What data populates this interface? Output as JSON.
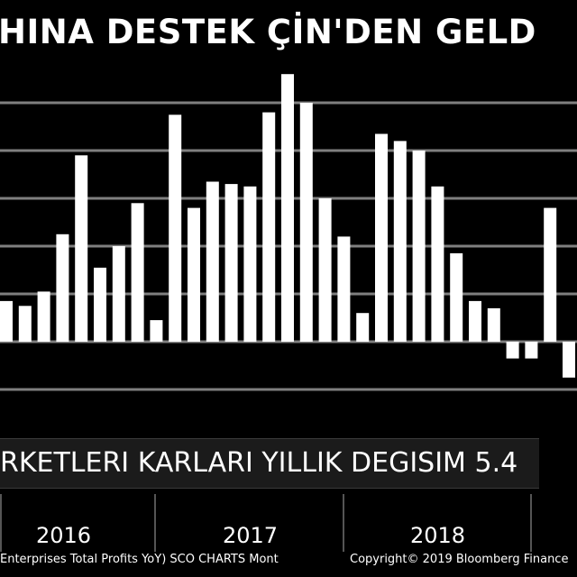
{
  "title": "HINA DESTEK ÇİN'DEN GELD",
  "banner": "RKETLERI KARLARI YILLIK DEGISIM 5.4",
  "footer_left": "Enterprises Total Profits YoY) SCO CHARTS  Mont",
  "footer_right": "Copyright© 2019 Bloomberg Finance",
  "colors": {
    "background": "#000000",
    "bars": "#ffffff",
    "gridlines": "#7f7f7f"
  },
  "chart_data": {
    "type": "bar",
    "x_labels": [
      "2016",
      "2017",
      "2018"
    ],
    "values": [
      8.5,
      7.5,
      10.5,
      22.5,
      39,
      15.5,
      20,
      29,
      4.5,
      47.5,
      28,
      33.5,
      33,
      32.5,
      48,
      56,
      50,
      30,
      22,
      6,
      43.5,
      42,
      40,
      32.5,
      18.5,
      8.5,
      7,
      -3.5,
      -3.5,
      28,
      -7.5
    ],
    "ylim": [
      -10,
      55
    ],
    "grid": true,
    "legend": "none"
  }
}
